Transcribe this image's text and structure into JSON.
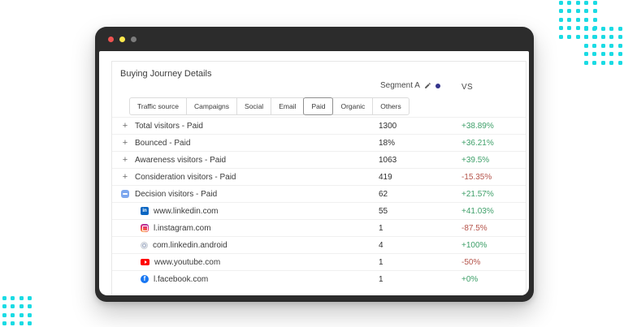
{
  "page": {
    "background": "#ffffff",
    "dot_color": "#1adbe4"
  },
  "window": {
    "traffic_lights": [
      {
        "name": "close-button",
        "color": "#ef5350"
      },
      {
        "name": "minimize-button",
        "color": "#ffe94d"
      },
      {
        "name": "zoom-button",
        "color": "#7c7c7c"
      }
    ],
    "chrome_color": "#2c2c2c"
  },
  "panel": {
    "title": "Buying Journey Details",
    "segment": {
      "label": "Segment A",
      "dot_color": "#34348c"
    },
    "vs_label": "VS",
    "tabs": [
      {
        "label": "Traffic source",
        "selected": false
      },
      {
        "label": "Campaigns",
        "selected": false
      },
      {
        "label": "Social",
        "selected": false
      },
      {
        "label": "Email",
        "selected": false
      },
      {
        "label": "Paid",
        "selected": true
      },
      {
        "label": "Organic",
        "selected": false
      },
      {
        "label": "Others",
        "selected": false
      }
    ],
    "rows": [
      {
        "level": 0,
        "expand": "plus",
        "icon": null,
        "label": "Total visitors - Paid",
        "value": "1300",
        "vs": "+38.89%",
        "trend": "up"
      },
      {
        "level": 0,
        "expand": "plus",
        "icon": null,
        "label": "Bounced - Paid",
        "value": "18%",
        "vs": "+36.21%",
        "trend": "up"
      },
      {
        "level": 0,
        "expand": "plus",
        "icon": null,
        "label": "Awareness visitors - Paid",
        "value": "1063",
        "vs": "+39.5%",
        "trend": "up"
      },
      {
        "level": 0,
        "expand": "plus",
        "icon": null,
        "label": "Consideration visitors - Paid",
        "value": "419",
        "vs": "-15.35%",
        "trend": "down"
      },
      {
        "level": 0,
        "expand": "minus",
        "icon": null,
        "label": "Decision visitors - Paid",
        "value": "62",
        "vs": "+21.57%",
        "trend": "up"
      },
      {
        "level": 1,
        "expand": null,
        "icon": "linkedin",
        "label": "www.linkedin.com",
        "value": "55",
        "vs": "+41.03%",
        "trend": "up"
      },
      {
        "level": 1,
        "expand": null,
        "icon": "instagram",
        "label": "l.instagram.com",
        "value": "1",
        "vs": "-87.5%",
        "trend": "down"
      },
      {
        "level": 1,
        "expand": null,
        "icon": "generic",
        "label": "com.linkedin.android",
        "value": "4",
        "vs": "+100%",
        "trend": "up"
      },
      {
        "level": 1,
        "expand": null,
        "icon": "youtube",
        "label": "www.youtube.com",
        "value": "1",
        "vs": "-50%",
        "trend": "down"
      },
      {
        "level": 1,
        "expand": null,
        "icon": "facebook",
        "label": "l.facebook.com",
        "value": "1",
        "vs": "+0%",
        "trend": "up"
      }
    ],
    "trend_colors": {
      "up": "#3fa06a",
      "down": "#b5544b"
    },
    "favicon_text": {
      "linkedin": "in",
      "facebook": "f"
    }
  }
}
